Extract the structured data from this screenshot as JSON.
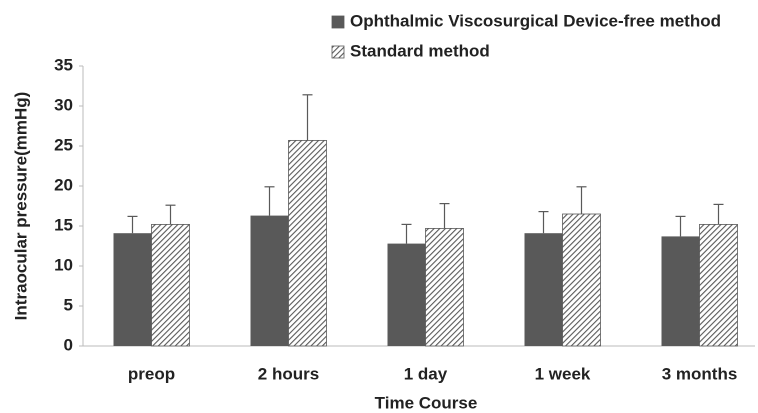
{
  "chart_data": {
    "type": "bar",
    "x_label": "Time Course",
    "y_label": "Intraocular pressure(mmHg)",
    "categories": [
      "preop",
      "2 hours",
      "1 day",
      "1 week",
      "3 months"
    ],
    "series": [
      {
        "name": "Ophthalmic Viscosurgical Device-free method",
        "color": "#595959",
        "pattern": "solid",
        "values": [
          14.1,
          16.3,
          12.8,
          14.1,
          13.7
        ],
        "errors": [
          2.1,
          3.6,
          2.4,
          2.7,
          2.5
        ]
      },
      {
        "name": "Standard method",
        "color": "#595959",
        "pattern": "hatch",
        "values": [
          15.2,
          25.7,
          14.7,
          16.5,
          15.2
        ],
        "errors": [
          2.4,
          5.7,
          3.1,
          3.4,
          2.5
        ]
      }
    ],
    "ylim": [
      0,
      35
    ],
    "yticks": [
      0,
      5,
      10,
      15,
      20,
      25,
      30,
      35
    ],
    "grid": false
  }
}
